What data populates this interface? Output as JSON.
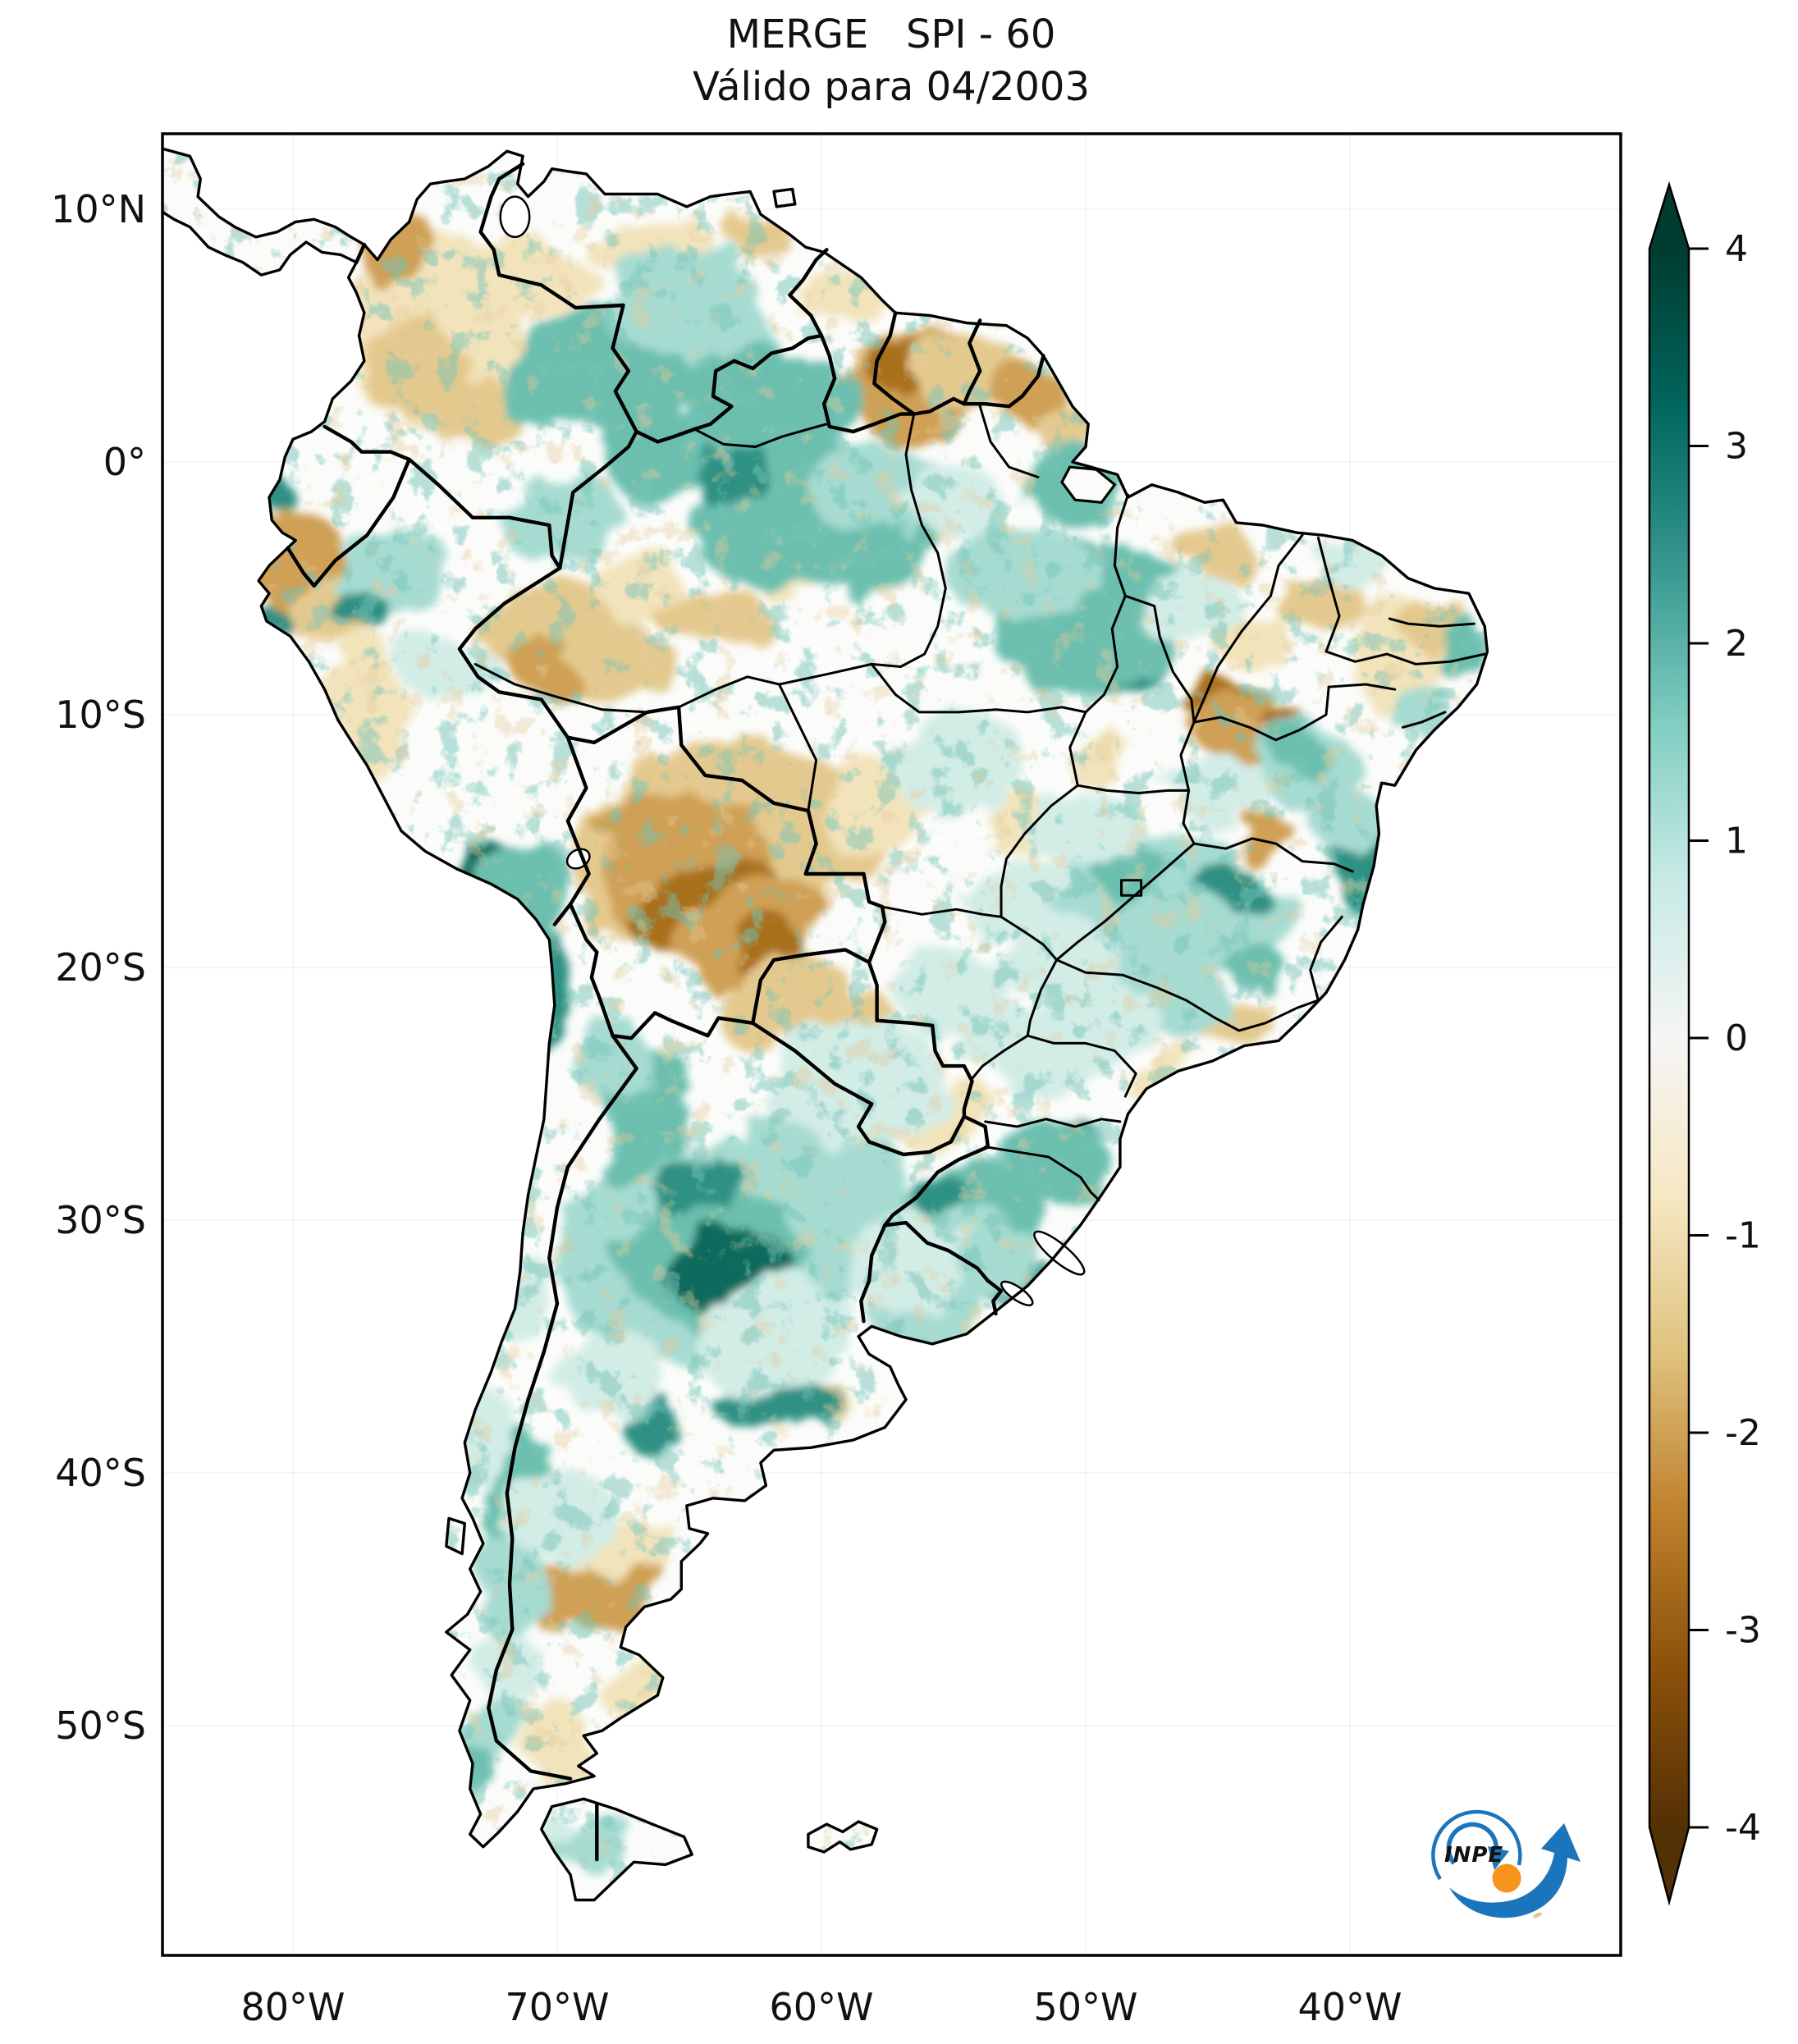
{
  "title": {
    "line1": "MERGE   SPI - 60",
    "line2": "Válido para 04/2003"
  },
  "map": {
    "region": "South America",
    "variable": "SPI-60 (Standardized Precipitation Index, 60 months)",
    "valid_for": "04/2003",
    "source_label": "MERGE",
    "ocean_color": "#ffffff",
    "land_color": "#fbfcfa",
    "border_color": "#000000",
    "axes": {
      "lat_ticks": [
        {
          "label": "10°N",
          "lat": 10
        },
        {
          "label": "0°",
          "lat": 0
        },
        {
          "label": "10°S",
          "lat": -10
        },
        {
          "label": "20°S",
          "lat": -20
        },
        {
          "label": "30°S",
          "lat": -30
        },
        {
          "label": "40°S",
          "lat": -40
        },
        {
          "label": "50°S",
          "lat": -50
        }
      ],
      "lon_ticks": [
        {
          "label": "80°W",
          "lon": -80
        },
        {
          "label": "70°W",
          "lon": -70
        },
        {
          "label": "60°W",
          "lon": -60
        },
        {
          "label": "50°W",
          "lon": -50
        },
        {
          "label": "40°W",
          "lon": -40
        }
      ]
    }
  },
  "colorbar": {
    "min": -4,
    "max": 4,
    "extend": "both",
    "tick_labels": [
      "4",
      "3",
      "2",
      "1",
      "0",
      "-1",
      "-2",
      "-3",
      "-4"
    ],
    "tick_values": [
      4,
      3,
      2,
      1,
      0,
      -1,
      -2,
      -3,
      -4
    ],
    "gradient_top_to_bottom": [
      "#003c30",
      "#01665e",
      "#35978f",
      "#80cdc1",
      "#c7eae5",
      "#f5f5f5",
      "#f6e8c3",
      "#dfc27d",
      "#bf812d",
      "#8c510a",
      "#543005"
    ],
    "wet_color_meaning": "positive SPI (wet), teal/green",
    "dry_color_meaning": "negative SPI (dry), brown"
  },
  "anomaly_regions": [
    {
      "area": "Bolivia / SW Mato Grosso",
      "sign": "dry",
      "intensity": -2.5
    },
    {
      "area": "Colombia and western Venezuela",
      "sign": "dry",
      "intensity": -1.5
    },
    {
      "area": "Guyana–northern Brazil border",
      "sign": "dry",
      "intensity": -2
    },
    {
      "area": "Southwestern Amazon (Acre/Purus)",
      "sign": "dry",
      "intensity": -1
    },
    {
      "area": "Southern Piauí / western Bahia spots",
      "sign": "dry",
      "intensity": -2
    },
    {
      "area": "Central Patagonia (Chubut)",
      "sign": "dry",
      "intensity": -2.5
    },
    {
      "area": "Paraguay diagonal band",
      "sign": "dry",
      "intensity": -1
    },
    {
      "area": "Guainía (Colombia/Venezuela border)",
      "sign": "wet",
      "intensity": 2.5
    },
    {
      "area": "Central Amazon (lower Rio Negro)",
      "sign": "wet",
      "intensity": 2
    },
    {
      "area": "Eastern Pará / Tocantins",
      "sign": "wet",
      "intensity": 2
    },
    {
      "area": "Central-eastern Brazil (Minas Gerais/Goiás)",
      "sign": "wet",
      "intensity": 1.5
    },
    {
      "area": "Central Argentina (Córdoba/San Luis)",
      "sign": "wet",
      "intensity": 2.5
    },
    {
      "area": "Rio Grande do Sul and Uruguay",
      "sign": "wet",
      "intensity": 1.5
    },
    {
      "area": "Atacama / Altiplano strip",
      "sign": "wet",
      "intensity": 2
    }
  ],
  "logo": {
    "name": "INPE",
    "text": "INPE",
    "blue": "#1b75bc",
    "orange": "#f7941e"
  }
}
